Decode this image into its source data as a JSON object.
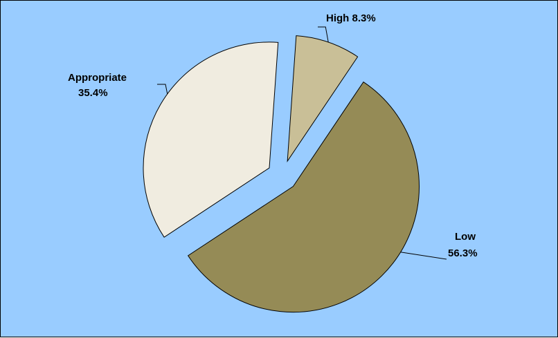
{
  "chart_data": {
    "type": "pie",
    "exploded": true,
    "background_color": "#99ccff",
    "slices": [
      {
        "label": "High",
        "percent_label": "8.3%",
        "value": 8.3,
        "color": "#c9bf97"
      },
      {
        "label": "Low",
        "percent_label": "56.3%",
        "value": 56.3,
        "color": "#958b56"
      },
      {
        "label": "Appropriate",
        "percent_label": "35.4%",
        "value": 35.4,
        "color": "#f0ece0"
      }
    ]
  }
}
